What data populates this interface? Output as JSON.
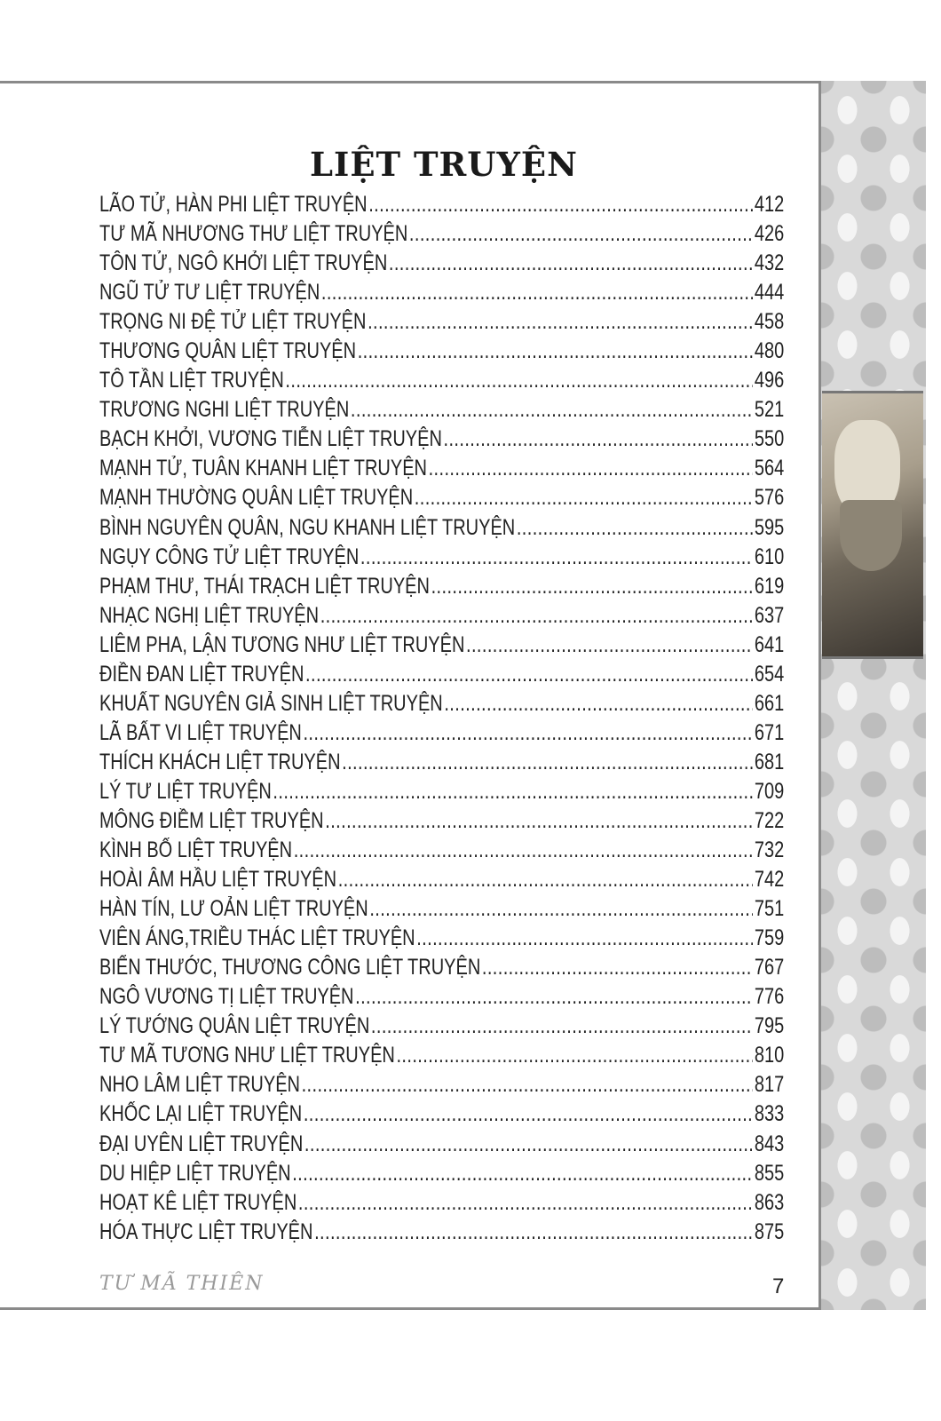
{
  "title": "LIỆT TRUYỆN",
  "entries": [
    {
      "title": "LÃO TỬ, HÀN PHI LIỆT TRUYỆN",
      "page": "412"
    },
    {
      "title": "TƯ MÃ NHƯƠNG THƯ LIỆT TRUYỆN",
      "page": "426"
    },
    {
      "title": "TÔN TỬ, NGÔ KHỞI LIỆT TRUYỆN",
      "page": "432"
    },
    {
      "title": "NGŨ TỬ TƯ LIỆT TRUYỆN",
      "page": "444"
    },
    {
      "title": "TRỌNG NI ĐỆ TỬ LIỆT TRUYỆN",
      "page": "458"
    },
    {
      "title": "THƯƠNG QUÂN LIỆT TRUYỆN",
      "page": "480"
    },
    {
      "title": "TÔ TẦN LIỆT TRUYỆN",
      "page": "496"
    },
    {
      "title": "TRƯƠNG NGHI LIỆT TRUYỆN",
      "page": "521"
    },
    {
      "title": "BẠCH KHỞI, VƯƠNG TIỄN LIỆT TRUYỆN",
      "page": "550"
    },
    {
      "title": "MẠNH TỬ, TUÂN KHANH LIỆT TRUYỆN",
      "page": "564"
    },
    {
      "title": "MẠNH THƯỜNG QUÂN LIỆT TRUYỆN",
      "page": "576"
    },
    {
      "title": "BÌNH NGUYÊN QUÂN, NGU KHANH LIỆT TRUYỆN",
      "page": "595"
    },
    {
      "title": "NGỤY CÔNG TỬ LIỆT TRUYỆN",
      "page": "610"
    },
    {
      "title": "PHẠM THƯ, THÁI TRẠCH LIỆT TRUYỆN",
      "page": "619"
    },
    {
      "title": "NHẠC NGHỊ LIỆT TRUYỆN",
      "page": "637"
    },
    {
      "title": "LIÊM PHA, LẬN TƯƠNG NHƯ LIỆT TRUYỆN",
      "page": "641"
    },
    {
      "title": "ĐIỀN ĐAN LIỆT TRUYỆN",
      "page": "654"
    },
    {
      "title": "KHUẤT NGUYÊN GIẢ SINH LIỆT TRUYỆN",
      "page": "661"
    },
    {
      "title": "LÃ BẤT VI LIỆT TRUYỆN",
      "page": "671"
    },
    {
      "title": "THÍCH KHÁCH LIỆT TRUYỆN",
      "page": "681"
    },
    {
      "title": "LÝ TƯ LIỆT TRUYỆN",
      "page": "709"
    },
    {
      "title": "MÔNG ĐIỀM LIỆT TRUYỆN",
      "page": "722"
    },
    {
      "title": "KÌNH BỐ LIỆT TRUYỆN",
      "page": "732"
    },
    {
      "title": "HOÀI ÂM HẦU LIỆT TRUYỆN",
      "page": "742"
    },
    {
      "title": "HÀN TÍN, LƯ OẢN LIỆT TRUYỆN",
      "page": "751"
    },
    {
      "title": "VIÊN ÁNG,TRIỀU THÁC LIỆT TRUYỆN",
      "page": "759"
    },
    {
      "title": "BIỂN THƯỚC, THƯƠNG CÔNG LIỆT TRUYỆN",
      "page": "767"
    },
    {
      "title": "NGÔ VƯƠNG TỊ LIỆT TRUYỆN",
      "page": "776"
    },
    {
      "title": "LÝ TƯỚNG QUÂN LIỆT TRUYỆN",
      "page": "795"
    },
    {
      "title": "TƯ MÃ TƯƠNG NHƯ LIỆT TRUYỆN",
      "page": "810"
    },
    {
      "title": "NHO LÂM LIỆT TRUYỆN",
      "page": "817"
    },
    {
      "title": "KHỐC LẠI LIỆT TRUYỆN",
      "page": "833"
    },
    {
      "title": "ĐẠI UYÊN LIỆT TRUYỆN",
      "page": "843"
    },
    {
      "title": "DU HIỆP LIỆT TRUYỆN",
      "page": "855"
    },
    {
      "title": "HOẠT KÊ LIỆT TRUYỆN",
      "page": "863"
    },
    {
      "title": "HÓA THỰC LIỆT TRUYỆN",
      "page": "875"
    }
  ],
  "footer": {
    "book_title": "TƯ MÃ THIÊN",
    "page_number": "7"
  }
}
